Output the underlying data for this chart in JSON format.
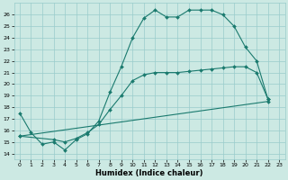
{
  "xlabel": "Humidex (Indice chaleur)",
  "bg_color": "#cce9e3",
  "grid_color": "#99cccc",
  "line_color": "#1a7a6e",
  "xlim": [
    -0.5,
    23.5
  ],
  "ylim": [
    13.5,
    27
  ],
  "xticks": [
    0,
    1,
    2,
    3,
    4,
    5,
    6,
    7,
    8,
    9,
    10,
    11,
    12,
    13,
    14,
    15,
    16,
    17,
    18,
    19,
    20,
    21,
    22,
    23
  ],
  "yticks": [
    14,
    15,
    16,
    17,
    18,
    19,
    20,
    21,
    22,
    23,
    24,
    25,
    26
  ],
  "line1_x": [
    0,
    1,
    2,
    3,
    4,
    5,
    6,
    7,
    8,
    9,
    10,
    11,
    12,
    13,
    14,
    15,
    16,
    17,
    18,
    19,
    20,
    21,
    22
  ],
  "line1_y": [
    17.5,
    15.8,
    14.8,
    15.0,
    14.3,
    15.2,
    15.7,
    16.8,
    19.3,
    21.5,
    24.0,
    25.7,
    26.4,
    25.8,
    25.8,
    26.4,
    26.4,
    26.4,
    26.0,
    25.0,
    23.2,
    22.0,
    18.7
  ],
  "line2_x": [
    0,
    22
  ],
  "line2_y": [
    15.5,
    18.5
  ],
  "line3_x": [
    0,
    3,
    4,
    5,
    6,
    7,
    8,
    9,
    10,
    11,
    12,
    13,
    14,
    15,
    16,
    17,
    18,
    19,
    20,
    21,
    22
  ],
  "line3_y": [
    15.5,
    15.2,
    15.0,
    15.3,
    15.8,
    16.5,
    17.8,
    19.0,
    20.3,
    20.8,
    21.0,
    21.0,
    21.0,
    21.1,
    21.2,
    21.3,
    21.4,
    21.5,
    21.5,
    21.0,
    18.7
  ]
}
